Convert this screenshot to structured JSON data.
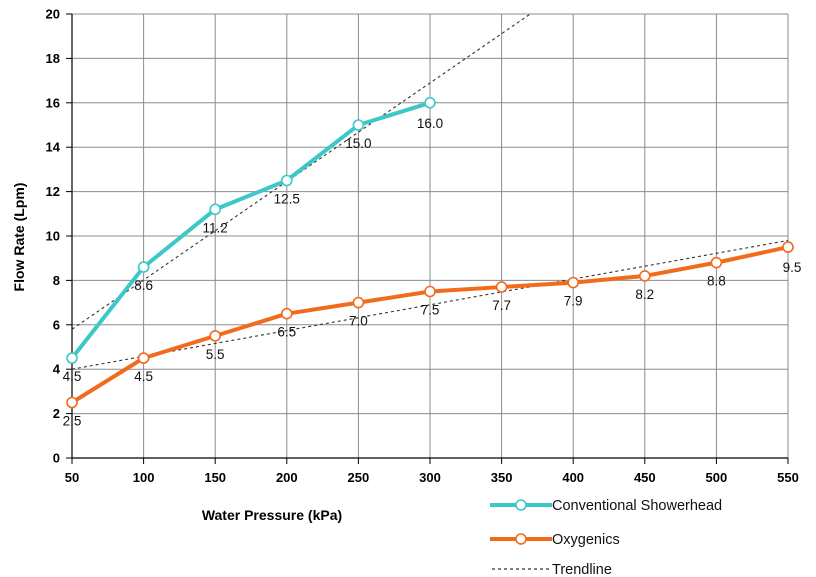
{
  "chart_data": {
    "type": "line",
    "xlabel": "Water Pressure (kPa)",
    "ylabel": "Flow Rate (Lpm)",
    "x_ticks": [
      50,
      100,
      150,
      200,
      250,
      300,
      350,
      400,
      450,
      500,
      550
    ],
    "y_ticks": [
      0,
      2,
      4,
      6,
      8,
      10,
      12,
      14,
      16,
      18,
      20
    ],
    "xlim": [
      50,
      550
    ],
    "ylim": [
      0,
      20
    ],
    "grid": true,
    "legend_position": "bottom-right",
    "series": [
      {
        "name": "Conventional Showerhead",
        "color": "#3cc8c8",
        "x": [
          50,
          100,
          150,
          200,
          250,
          300
        ],
        "values": [
          4.5,
          8.6,
          11.2,
          12.5,
          15.0,
          16.0
        ],
        "labels": [
          "4.5",
          "8.6",
          "11.2",
          "12.5",
          "15.0",
          "16.0"
        ]
      },
      {
        "name": "Oxygenics",
        "color": "#f26b1d",
        "x": [
          50,
          100,
          150,
          200,
          250,
          300,
          350,
          400,
          450,
          500,
          550
        ],
        "values": [
          2.5,
          4.5,
          5.5,
          6.5,
          7.0,
          7.5,
          7.7,
          7.9,
          8.2,
          8.8,
          9.5
        ],
        "labels": [
          "2.5",
          "4.5",
          "5.5",
          "6.5",
          "7.0",
          "7.5",
          "7.7",
          "7.9",
          "8.2",
          "8.8",
          "9.5"
        ]
      }
    ],
    "trendlines": [
      {
        "series": "Conventional Showerhead",
        "x": [
          50,
          370
        ],
        "values": [
          5.8,
          20
        ]
      },
      {
        "series": "Oxygenics",
        "x": [
          50,
          550
        ],
        "values": [
          4.0,
          9.8
        ]
      }
    ],
    "legend": [
      {
        "label": "Conventional Showerhead",
        "color": "#3cc8c8",
        "style": "line-marker"
      },
      {
        "label": "Oxygenics",
        "color": "#f26b1d",
        "style": "line-marker"
      },
      {
        "label": "Trendline",
        "color": "#333333",
        "style": "dashed"
      }
    ]
  }
}
